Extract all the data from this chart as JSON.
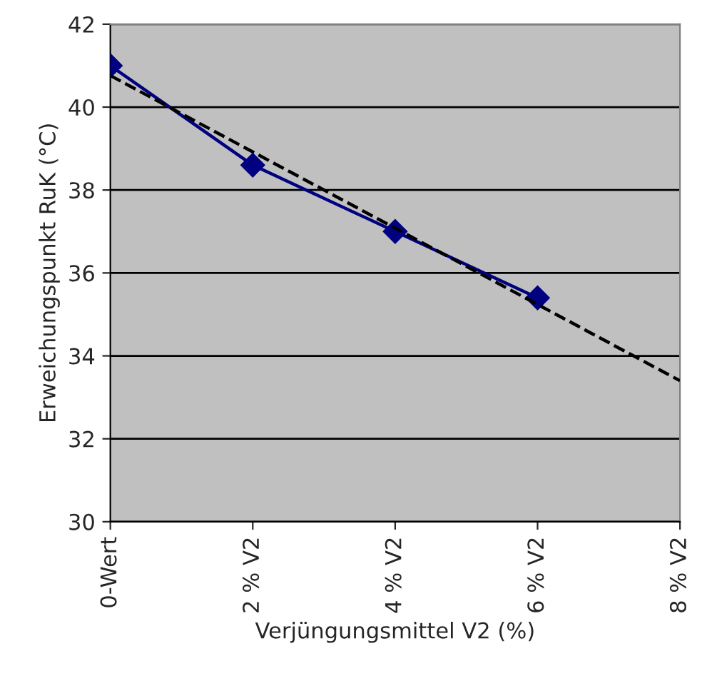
{
  "chart_data": {
    "type": "line",
    "xlabel": "Verjüngungsmittel V2 (%)",
    "ylabel": "Erweichungspunkt RuK (°C)",
    "categories": [
      "0-Wert",
      "2 % V2",
      "4 % V2",
      "6 % V2",
      "8 % V2"
    ],
    "series": [
      {
        "color": "#000080",
        "values": [
          41.0,
          38.6,
          37.0,
          35.4,
          null
        ],
        "marker": "diamond",
        "line_style": "solid"
      },
      {
        "color": "#000000",
        "values": [
          40.76,
          38.92,
          37.08,
          35.24,
          33.4
        ],
        "marker": "none",
        "line_style": "dashed"
      }
    ],
    "ylim": [
      30,
      42
    ],
    "yticks": [
      30,
      32,
      34,
      36,
      38,
      40,
      42
    ],
    "grid": "y"
  }
}
